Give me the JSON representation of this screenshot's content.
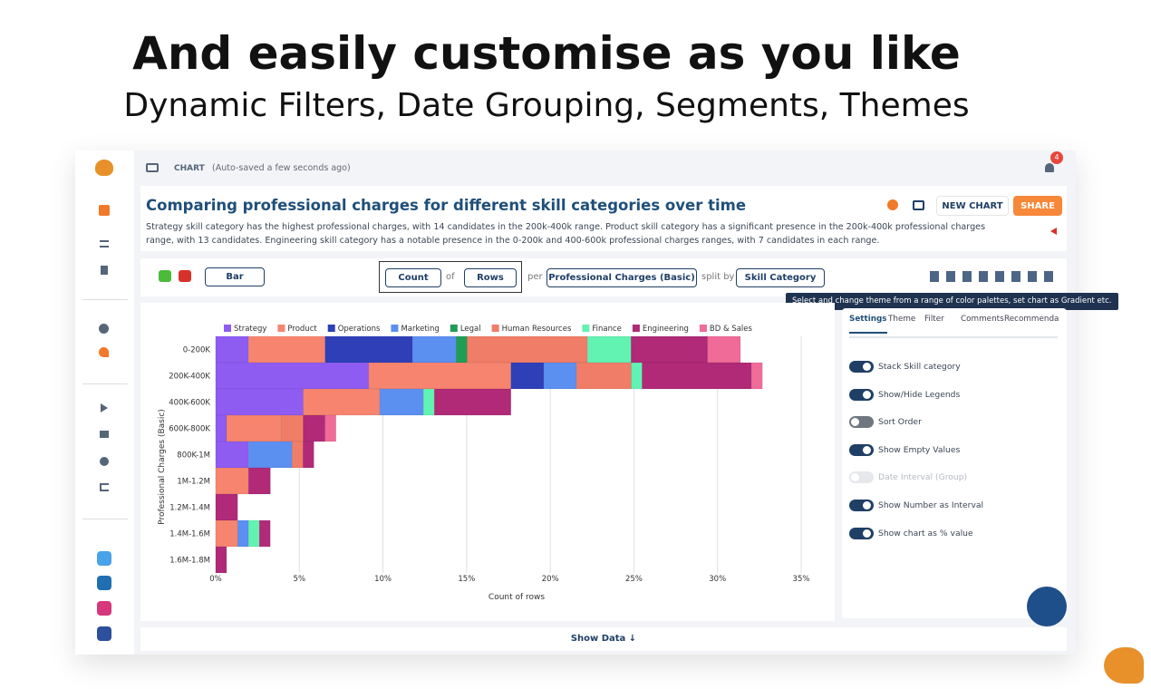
{
  "headline": "And easily customise as you like",
  "subheadline": "Dynamic Filters, Date Grouping, Segments, Themes",
  "header": {
    "section": "CHART",
    "status": "(Auto-saved a few seconds ago)",
    "notifications": "4"
  },
  "title": "Comparing professional charges for different skill categories over time",
  "description": "Strategy skill category has the highest professional charges, with 14 candidates in the 200k-400k range. Product skill category has a significant presence in the 200k-400k professional charges range, with 13 candidates. Engineering skill category has a notable presence in the 0-200k and 400-600k professional charges ranges, with 7 candidates in each range.",
  "buttons": {
    "new_chart": "NEW CHART",
    "share": "SHARE",
    "show_data": "Show Data"
  },
  "toolbar": {
    "chart_type": "Bar",
    "measure": "Count",
    "of": "of",
    "field": "Rows",
    "per": "per",
    "dimension": "Professional Charges (Basic)",
    "split_by": "split by",
    "split": "Skill Category"
  },
  "tooltip": "Select and change theme from a range of color palettes, set chart as Gradient etc.",
  "tabs": [
    "Settings",
    "Theme",
    "Filter",
    "Comments",
    "Recommenda"
  ],
  "toggles": [
    {
      "label": "Stack Skill category",
      "on": true
    },
    {
      "label": "Show/Hide Legends",
      "on": true
    },
    {
      "label": "Sort Order",
      "on": false
    },
    {
      "label": "Show Empty Values",
      "on": true
    },
    {
      "label": "Date Interval (Group)",
      "on": false,
      "disabled": true
    },
    {
      "label": "Show Number as Interval",
      "on": true
    },
    {
      "label": "Show chart as % value",
      "on": true
    }
  ],
  "chart_data": {
    "type": "stacked_barh",
    "xlabel": "Count of rows",
    "ylabel": "Professional Charges (Basic)",
    "categories": [
      "0-200K",
      "200K-400K",
      "400K-600K",
      "600K-800K",
      "800K-1M",
      "1M-1.2M",
      "1.2M-1.4M",
      "1.4M-1.6M",
      "1.6M-1.8M"
    ],
    "series": [
      {
        "name": "Strategy",
        "color": "#8f5cf2",
        "values": [
          1.96,
          9.15,
          5.23,
          0.65,
          1.96,
          null,
          null,
          null,
          null
        ]
      },
      {
        "name": "Product",
        "color": "#f6846f",
        "values": [
          4.58,
          8.5,
          4.58,
          3.27,
          null,
          1.96,
          null,
          1.31,
          null
        ]
      },
      {
        "name": "Operations",
        "color": "#2f3fb8",
        "values": [
          5.23,
          1.96,
          null,
          null,
          null,
          null,
          null,
          null,
          null
        ]
      },
      {
        "name": "Marketing",
        "color": "#5b8ff0",
        "values": [
          2.61,
          1.96,
          2.61,
          null,
          2.61,
          null,
          null,
          0.65,
          null
        ]
      },
      {
        "name": "Legal",
        "color": "#1f9d55",
        "values": [
          0.65,
          null,
          null,
          null,
          null,
          null,
          null,
          null,
          null
        ]
      },
      {
        "name": "Human Resources",
        "color": "#f07d68",
        "values": [
          7.19,
          3.27,
          null,
          1.31,
          0.65,
          null,
          null,
          null,
          null
        ]
      },
      {
        "name": "Finance",
        "color": "#62f2b2",
        "values": [
          2.61,
          0.65,
          0.65,
          null,
          null,
          null,
          null,
          0.65,
          null
        ]
      },
      {
        "name": "Engineering",
        "color": "#b02a78",
        "values": [
          4.58,
          6.54,
          4.58,
          1.31,
          0.65,
          1.31,
          1.31,
          0.65,
          0.65
        ]
      },
      {
        "name": "BD & Sales",
        "color": "#f06b98",
        "values": [
          1.96,
          0.65,
          null,
          0.65,
          null,
          null,
          null,
          null,
          null
        ]
      }
    ],
    "xlim": [
      0,
      35
    ],
    "xticks": [
      {
        "value": 0,
        "label": "0%"
      },
      {
        "value": 5,
        "label": "5%"
      },
      {
        "value": 10,
        "label": "10%"
      },
      {
        "value": 15,
        "label": "15%"
      },
      {
        "value": 20,
        "label": "20%"
      },
      {
        "value": 25,
        "label": "25%"
      },
      {
        "value": 30,
        "label": "30%"
      },
      {
        "value": 35,
        "label": "35%"
      }
    ],
    "grid": true,
    "legend": "top"
  }
}
